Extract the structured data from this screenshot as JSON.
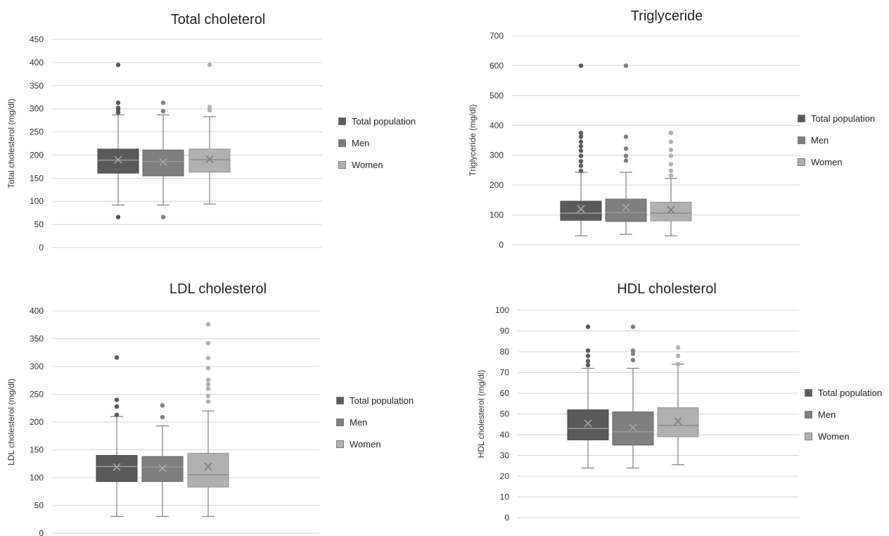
{
  "series_colors": {
    "total": "#5a5a5a",
    "men": "#7f7f7f",
    "women": "#b0b0b0"
  },
  "legend": [
    "Total population",
    "Men",
    "Women"
  ],
  "chart_data": [
    {
      "type": "box",
      "title": "Total choleterol",
      "ylabel": "Total cholesterol (mg/dl)",
      "ylim": [
        0,
        450
      ],
      "yticks": [
        0,
        50,
        100,
        150,
        200,
        250,
        300,
        350,
        400,
        450
      ],
      "series": [
        {
          "name": "Total population",
          "min": 92,
          "q1": 161,
          "median": 189,
          "q3": 213,
          "max": 287,
          "mean": 190,
          "outliers": [
            66,
            292,
            297,
            302,
            313,
            395
          ]
        },
        {
          "name": "Men",
          "min": 92,
          "q1": 155,
          "median": 186,
          "q3": 211,
          "max": 287,
          "mean": 185,
          "outliers": [
            66,
            295,
            313
          ]
        },
        {
          "name": "Women",
          "min": 94,
          "q1": 163,
          "median": 190,
          "q3": 213,
          "max": 283,
          "mean": 191,
          "outliers": [
            297,
            304,
            395
          ]
        }
      ]
    },
    {
      "type": "box",
      "title": "Triglyceride",
      "ylabel": "Triglyceride (mg/dl)",
      "ylim": [
        0,
        700
      ],
      "yticks": [
        0,
        100,
        200,
        300,
        400,
        500,
        600,
        700
      ],
      "series": [
        {
          "name": "Total population",
          "min": 30,
          "q1": 82,
          "median": 106,
          "q3": 146,
          "max": 243,
          "mean": 120,
          "outliers": [
            248,
            265,
            280,
            298,
            315,
            330,
            345,
            362,
            375,
            600
          ]
        },
        {
          "name": "Men",
          "min": 35,
          "q1": 78,
          "median": 108,
          "q3": 153,
          "max": 243,
          "mean": 125,
          "outliers": [
            282,
            298,
            322,
            362,
            600
          ]
        },
        {
          "name": "Women",
          "min": 30,
          "q1": 80,
          "median": 106,
          "q3": 143,
          "max": 222,
          "mean": 117,
          "outliers": [
            232,
            248,
            270,
            298,
            318,
            345,
            375
          ]
        }
      ]
    },
    {
      "type": "box",
      "title": "LDL cholesterol",
      "ylabel": "LDL cholesterol (mg/dl)",
      "ylim": [
        0,
        400
      ],
      "yticks": [
        0,
        50,
        100,
        150,
        200,
        250,
        300,
        350,
        400
      ],
      "series": [
        {
          "name": "Total population",
          "min": 30,
          "q1": 93,
          "median": 120,
          "q3": 140,
          "max": 210,
          "mean": 119,
          "outliers": [
            213,
            228,
            240,
            316
          ]
        },
        {
          "name": "Men",
          "min": 30,
          "q1": 93,
          "median": 119,
          "q3": 138,
          "max": 193,
          "mean": 117,
          "outliers": [
            209,
            230
          ]
        },
        {
          "name": "Women",
          "min": 30,
          "q1": 83,
          "median": 105,
          "q3": 144,
          "max": 220,
          "mean": 120,
          "outliers": [
            237,
            247,
            260,
            268,
            276,
            297,
            315,
            342,
            376
          ]
        }
      ]
    },
    {
      "type": "box",
      "title": "HDL cholesterol",
      "ylabel": "HDL cholesterol (mg/dl)",
      "ylim": [
        0,
        100
      ],
      "yticks": [
        0,
        10,
        20,
        30,
        40,
        50,
        60,
        70,
        80,
        90,
        100
      ],
      "series": [
        {
          "name": "Total population",
          "min": 24,
          "q1": 37.5,
          "median": 43,
          "q3": 52,
          "max": 72,
          "mean": 45.5,
          "outliers": [
            73.5,
            75.5,
            78,
            80.5,
            92
          ]
        },
        {
          "name": "Men",
          "min": 24,
          "q1": 35,
          "median": 41.5,
          "q3": 51,
          "max": 72,
          "mean": 43.5,
          "outliers": [
            76,
            79,
            80.5,
            92
          ]
        },
        {
          "name": "Women",
          "min": 25.5,
          "q1": 39,
          "median": 44.5,
          "q3": 53,
          "max": 74,
          "mean": 46.5,
          "outliers": [
            74,
            78,
            82
          ]
        }
      ]
    }
  ]
}
